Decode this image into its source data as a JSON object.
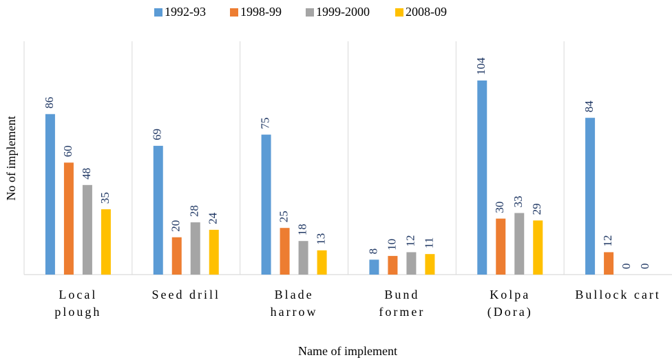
{
  "chart_data": {
    "type": "bar",
    "x_label": "Name of implement",
    "y_label": "No of implement",
    "categories": [
      [
        "Local",
        "plough"
      ],
      [
        "Seed drill"
      ],
      [
        "Blade",
        "harrow"
      ],
      [
        "Bund",
        "former"
      ],
      [
        "Kolpa",
        "(Dora)"
      ],
      [
        "Bullock cart"
      ]
    ],
    "series": [
      {
        "name": "1992-93",
        "color": "#5b9bd5",
        "values": [
          86,
          69,
          75,
          8,
          104,
          84
        ]
      },
      {
        "name": "1998-99",
        "color": "#ed7d31",
        "values": [
          60,
          20,
          25,
          10,
          30,
          12
        ]
      },
      {
        "name": "1999-2000",
        "color": "#a5a5a5",
        "values": [
          48,
          28,
          18,
          12,
          33,
          0
        ]
      },
      {
        "name": "2008-09",
        "color": "#ffc000",
        "values": [
          35,
          24,
          13,
          11,
          29,
          0
        ]
      }
    ],
    "ylim": [
      0,
      125
    ],
    "legend": "top"
  }
}
